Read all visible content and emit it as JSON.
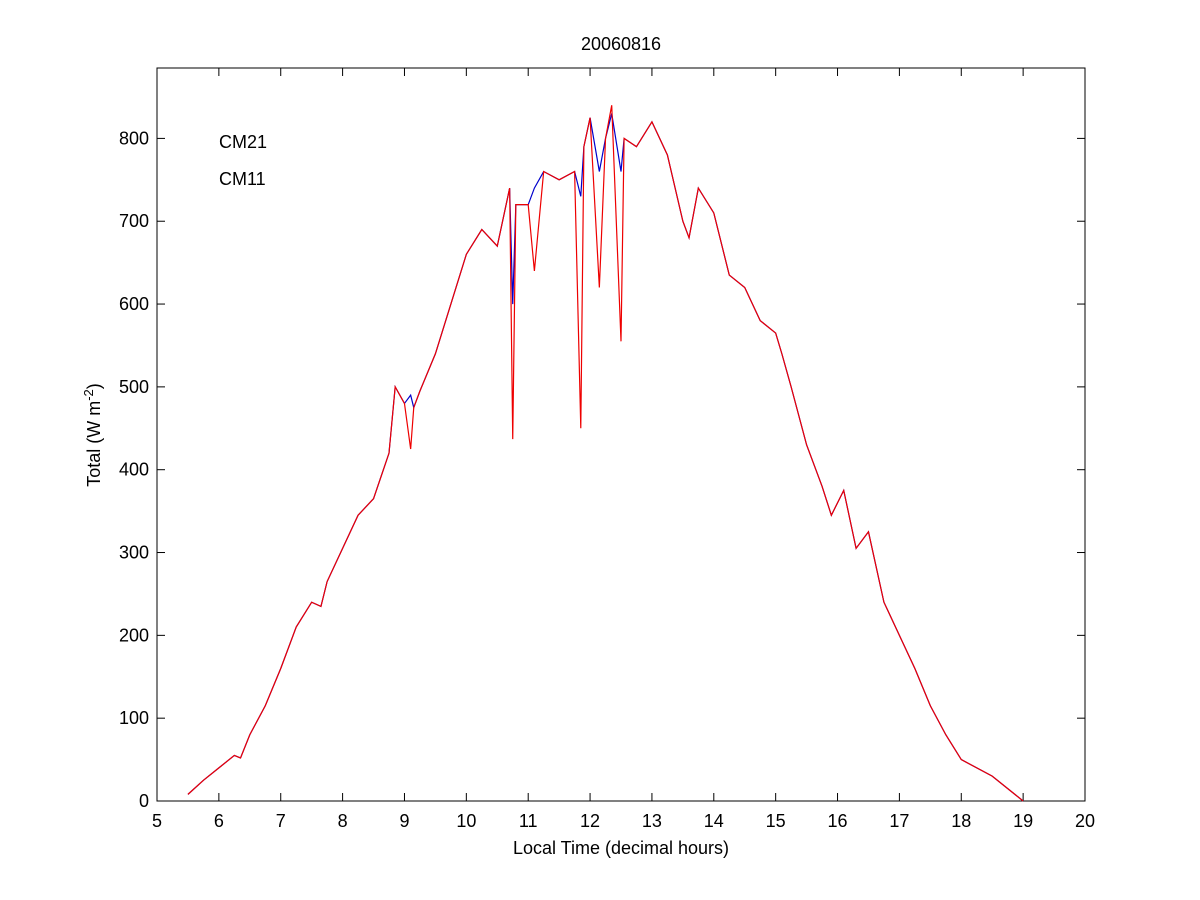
{
  "chart_data": {
    "type": "line",
    "title": "20060816",
    "xlabel": "Local Time (decimal hours)",
    "ylabel": {
      "text": "Total (W m",
      "superscript": "-2",
      "suffix": ")"
    },
    "x": [
      5.5,
      5.75,
      6.0,
      6.25,
      6.35,
      6.5,
      6.75,
      7.0,
      7.25,
      7.5,
      7.65,
      7.75,
      8.0,
      8.25,
      8.5,
      8.75,
      8.85,
      9.0,
      9.1,
      9.15,
      9.25,
      9.5,
      9.75,
      10.0,
      10.25,
      10.5,
      10.7,
      10.75,
      10.8,
      11.0,
      11.1,
      11.25,
      11.5,
      11.75,
      11.85,
      11.9,
      12.0,
      12.15,
      12.25,
      12.35,
      12.5,
      12.55,
      12.75,
      13.0,
      13.25,
      13.5,
      13.6,
      13.75,
      14.0,
      14.25,
      14.5,
      14.75,
      15.0,
      15.1,
      15.25,
      15.5,
      15.75,
      15.9,
      16.1,
      16.3,
      16.5,
      16.75,
      17.0,
      17.25,
      17.5,
      17.75,
      18.0,
      18.5,
      19.0
    ],
    "series": [
      {
        "name": "CM21",
        "color": "#0000cc",
        "values": [
          8,
          25,
          40,
          55,
          52,
          80,
          115,
          160,
          210,
          240,
          235,
          265,
          305,
          345,
          365,
          420,
          500,
          480,
          490,
          475,
          495,
          540,
          600,
          660,
          690,
          670,
          740,
          600,
          720,
          720,
          740,
          760,
          750,
          760,
          730,
          790,
          825,
          760,
          800,
          830,
          760,
          800,
          790,
          820,
          780,
          700,
          680,
          740,
          710,
          635,
          620,
          580,
          565,
          540,
          500,
          430,
          380,
          345,
          375,
          305,
          325,
          240,
          200,
          160,
          115,
          80,
          50,
          30,
          0
        ]
      },
      {
        "name": "CM11",
        "color": "#ee0000",
        "values": [
          8,
          25,
          40,
          55,
          52,
          80,
          115,
          160,
          210,
          240,
          235,
          265,
          305,
          345,
          365,
          420,
          500,
          480,
          425,
          475,
          495,
          540,
          600,
          660,
          690,
          670,
          740,
          437,
          720,
          720,
          640,
          760,
          750,
          760,
          450,
          790,
          825,
          620,
          800,
          840,
          555,
          800,
          790,
          820,
          780,
          700,
          680,
          740,
          710,
          635,
          620,
          580,
          565,
          540,
          500,
          430,
          380,
          345,
          375,
          305,
          325,
          240,
          200,
          160,
          115,
          80,
          50,
          30,
          0
        ]
      }
    ],
    "xlim": [
      5,
      20
    ],
    "xticks": [
      5,
      6,
      7,
      8,
      9,
      10,
      11,
      12,
      13,
      14,
      15,
      16,
      17,
      18,
      19,
      20
    ],
    "ylim": [
      0,
      885
    ],
    "yticks": [
      0,
      100,
      200,
      300,
      400,
      500,
      600,
      700,
      800
    ],
    "legend": "upper left"
  }
}
